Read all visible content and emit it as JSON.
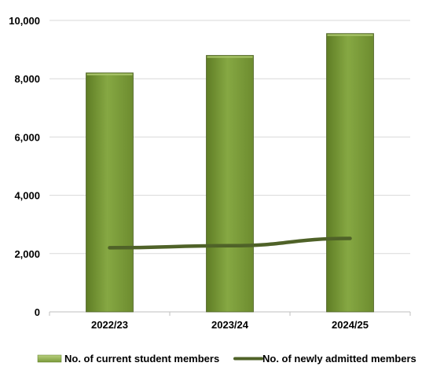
{
  "chart_data": {
    "type": "bar",
    "categories": [
      "2022/23",
      "2023/24",
      "2024/25"
    ],
    "series": [
      {
        "name": "No. of current student members",
        "type": "bar",
        "values": [
          8200,
          8800,
          9550
        ],
        "color": "#7a9a3a"
      },
      {
        "name": "No. of newly admitted members",
        "type": "line",
        "values": [
          2200,
          2270,
          2520
        ],
        "color": "#4f6228"
      }
    ],
    "yticks": [
      "0",
      "2,000",
      "4,000",
      "6,000",
      "8,000",
      "10,000"
    ],
    "ylim": [
      0,
      10000
    ],
    "grid": true,
    "legend": "bottom"
  }
}
